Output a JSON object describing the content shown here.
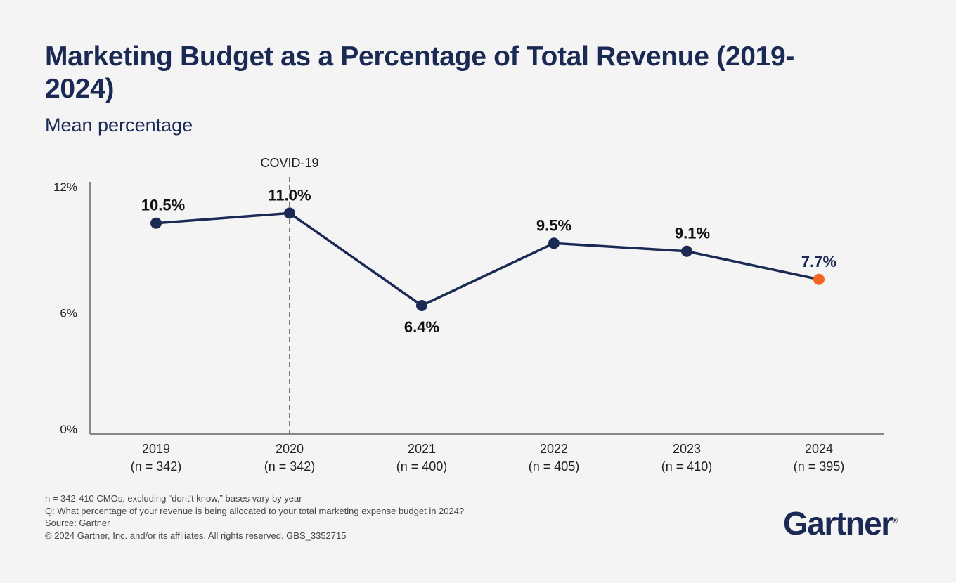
{
  "title": "Marketing Budget as a Percentage of Total Revenue (2019-2024)",
  "subtitle": "Mean percentage",
  "chart_data": {
    "type": "line",
    "title": "Marketing Budget as a Percentage of Total Revenue (2019-2024)",
    "ylabel": "Mean percentage",
    "categories": [
      "2019",
      "2020",
      "2021",
      "2022",
      "2023",
      "2024"
    ],
    "category_notes": [
      "(n = 342)",
      "(n = 342)",
      "(n = 400)",
      "(n = 405)",
      "(n = 410)",
      "(n = 395)"
    ],
    "values": [
      10.5,
      11.0,
      6.4,
      9.5,
      9.1,
      7.7
    ],
    "data_labels": [
      "10.5%",
      "11.0%",
      "6.4%",
      "9.5%",
      "9.1%",
      "7.7%"
    ],
    "yticks": [
      0,
      6,
      12
    ],
    "ytick_labels": [
      "0%",
      "6%",
      "12%"
    ],
    "ylim": [
      0,
      12
    ],
    "grid": false,
    "annotation": {
      "label": "COVID-19",
      "at": "2020"
    },
    "colors": {
      "line": "#1b2a55",
      "highlight": "#f26522",
      "annotation": "#777777"
    },
    "highlight_index": 5
  },
  "footnotes": [
    "n = 342-410 CMOs, excluding “dont't know,” bases vary by year",
    "Q: What percentage of your revenue is being allocated to your total marketing expense budget in 2024?",
    "Source: Gartner",
    "© 2024 Gartner, Inc. and/or its affiliates. All rights reserved. GBS_3352715"
  ],
  "logo": {
    "text": "Gartner",
    "mark": "®"
  }
}
